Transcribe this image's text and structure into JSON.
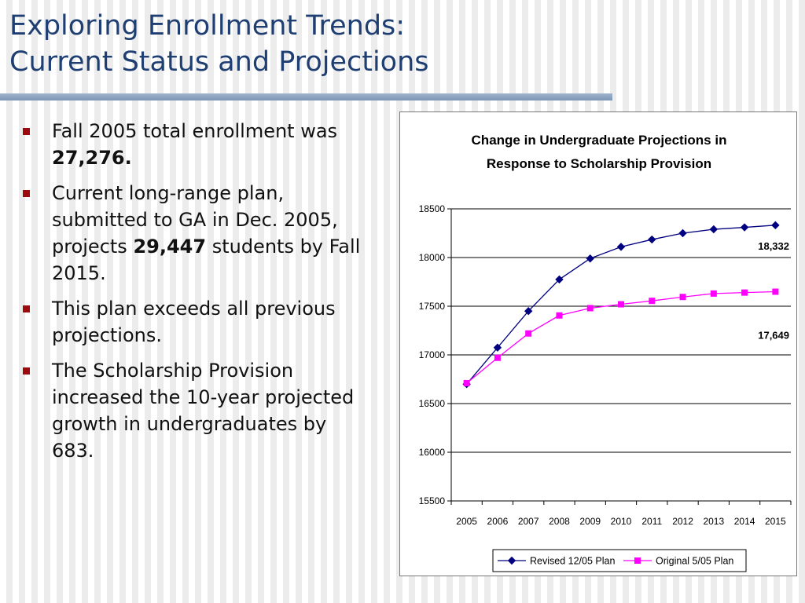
{
  "slide": {
    "title_line1": "Exploring Enrollment Trends:",
    "title_line2": "Current Status and Projections"
  },
  "bullets": [
    {
      "pre": "Fall 2005 total enrollment was ",
      "bold": "27,276.",
      "post": ""
    },
    {
      "pre": "Current long-range plan, submitted to GA in Dec. 2005, projects ",
      "bold": "29,447",
      "post": " students by Fall 2015."
    },
    {
      "pre": "This plan exceeds all previous projections.",
      "bold": "",
      "post": ""
    },
    {
      "pre": "The Scholarship Provision increased the 10-year projected growth in undergraduates by 683.",
      "bold": "",
      "post": ""
    }
  ],
  "colors": {
    "title": "#1f3f73",
    "bullet_marker": "#9e0b0f",
    "revised_series": "#000080",
    "original_series": "#ff00ff"
  },
  "chart_data": {
    "type": "line",
    "title_line1": "Change in Undergraduate Projections in",
    "title_line2": "Response to Scholarship Provision",
    "x": [
      2005,
      2006,
      2007,
      2008,
      2009,
      2010,
      2011,
      2012,
      2013,
      2014,
      2015
    ],
    "x_tick_labels": [
      "2005",
      "2006",
      "2007",
      "2008",
      "2009",
      "2010",
      "2011",
      "2012",
      "2013",
      "2014",
      "2015"
    ],
    "ylim": [
      15500,
      18500
    ],
    "y_ticks": [
      15500,
      16000,
      16500,
      17000,
      17500,
      18000,
      18500
    ],
    "y_tick_labels": [
      "15500",
      "16000",
      "16500",
      "17000",
      "17500",
      "18000",
      "18500"
    ],
    "grid": "horizontal",
    "legend_position": "bottom",
    "series": [
      {
        "name": "Revised 12/05 Plan",
        "marker": "diamond",
        "color": "#000080",
        "values": [
          16700,
          17075,
          17450,
          17775,
          17990,
          18110,
          18185,
          18250,
          18290,
          18310,
          18332
        ],
        "end_label": "18,332"
      },
      {
        "name": "Original 5/05 Plan",
        "marker": "square",
        "color": "#ff00ff",
        "values": [
          16710,
          16970,
          17220,
          17405,
          17480,
          17520,
          17555,
          17595,
          17630,
          17640,
          17649
        ],
        "end_label": "17,649"
      }
    ]
  }
}
